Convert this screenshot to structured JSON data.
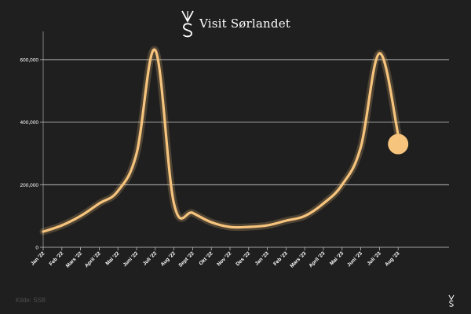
{
  "brand": {
    "name": "Visit Sørlandet",
    "logo_icon": "vs-logo-icon"
  },
  "source": "Kilde: SSB",
  "colors": {
    "background": "#1f1f1f",
    "line": "#f6c47d",
    "grid": "#cfcfcf",
    "text": "#ffffff"
  },
  "chart_data": {
    "type": "line",
    "title": "",
    "xlabel": "",
    "ylabel": "",
    "categories": [
      "Jan '22",
      "Feb '22",
      "Mars '22",
      "April '22",
      "Mai '22",
      "Juni '22",
      "Juli '22",
      "Aug '22",
      "Sept '22",
      "Okt '22",
      "Nov '22",
      "Des '22",
      "Jan '23",
      "Feb '23",
      "Mars '23",
      "April '23",
      "Mai '23",
      "Juni '23",
      "Juli '23",
      "Aug '23"
    ],
    "series": [
      {
        "values": [
          50000,
          70000,
          100000,
          140000,
          180000,
          300000,
          630000,
          140000,
          110000,
          80000,
          65000,
          65000,
          70000,
          85000,
          100000,
          140000,
          200000,
          320000,
          620000,
          360000
        ]
      }
    ],
    "ylim": [
      0,
      650000
    ],
    "yticks": [
      {
        "value": 0,
        "label": "0"
      },
      {
        "value": 200000,
        "label": "200,000"
      },
      {
        "value": 400000,
        "label": "400,000"
      },
      {
        "value": 600000,
        "label": "600,000"
      }
    ],
    "grid": true,
    "highlight_last_point": true
  }
}
